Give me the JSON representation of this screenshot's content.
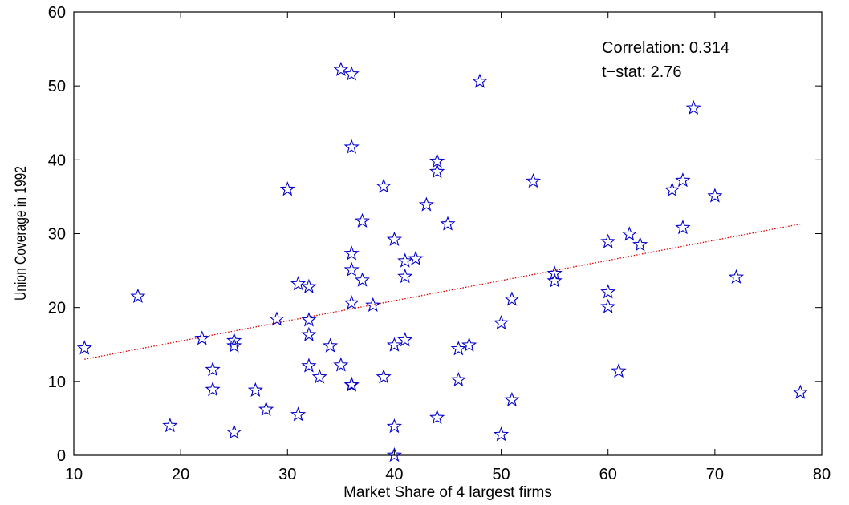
{
  "chart_data": {
    "type": "scatter",
    "title": "",
    "xlabel": "Market Share of 4 largest firms",
    "ylabel": "Union Coverage in 1992",
    "xlim": [
      10,
      80
    ],
    "ylim": [
      0,
      60
    ],
    "x_ticks": [
      10,
      20,
      30,
      40,
      50,
      60,
      70,
      80
    ],
    "y_ticks": [
      0,
      10,
      20,
      30,
      40,
      50,
      60
    ],
    "grid": false,
    "legend": "none",
    "marker": "star",
    "marker_color": "#0000cc",
    "fit_line": {
      "color": "#dd0000",
      "style": "dotted",
      "x": [
        11,
        78
      ],
      "y": [
        13.0,
        31.3
      ]
    },
    "annotations": [
      "Correlation: 0.314",
      "t−stat: 2.76"
    ],
    "points": [
      [
        11,
        14.5
      ],
      [
        16,
        21.5
      ],
      [
        19,
        4.0
      ],
      [
        22,
        15.8
      ],
      [
        23,
        11.6
      ],
      [
        23,
        8.9
      ],
      [
        25,
        15.5
      ],
      [
        25,
        14.8
      ],
      [
        25,
        3.1
      ],
      [
        27,
        8.8
      ],
      [
        28,
        6.2
      ],
      [
        29,
        18.4
      ],
      [
        30,
        36.0
      ],
      [
        31,
        23.2
      ],
      [
        31,
        5.5
      ],
      [
        32,
        22.8
      ],
      [
        32,
        18.3
      ],
      [
        32,
        16.3
      ],
      [
        32,
        12.1
      ],
      [
        33,
        10.6
      ],
      [
        34,
        14.8
      ],
      [
        35,
        52.2
      ],
      [
        35,
        12.2
      ],
      [
        36,
        51.6
      ],
      [
        36,
        41.7
      ],
      [
        36,
        27.3
      ],
      [
        36,
        25.1
      ],
      [
        36,
        20.6
      ],
      [
        36,
        9.6
      ],
      [
        36,
        9.5
      ],
      [
        37,
        31.7
      ],
      [
        37,
        23.7
      ],
      [
        38,
        20.3
      ],
      [
        39,
        36.4
      ],
      [
        39,
        10.6
      ],
      [
        40,
        29.2
      ],
      [
        40,
        14.9
      ],
      [
        40,
        3.9
      ],
      [
        40,
        0.0
      ],
      [
        41,
        26.3
      ],
      [
        41,
        24.2
      ],
      [
        41,
        15.6
      ],
      [
        42,
        26.6
      ],
      [
        43,
        33.9
      ],
      [
        44,
        39.8
      ],
      [
        44,
        38.4
      ],
      [
        44,
        5.1
      ],
      [
        45,
        31.3
      ],
      [
        46,
        14.4
      ],
      [
        46,
        10.2
      ],
      [
        47,
        14.9
      ],
      [
        48,
        50.6
      ],
      [
        50,
        17.9
      ],
      [
        50,
        2.8
      ],
      [
        51,
        21.1
      ],
      [
        51,
        7.5
      ],
      [
        53,
        37.1
      ],
      [
        55,
        24.6
      ],
      [
        55,
        23.6
      ],
      [
        60,
        28.9
      ],
      [
        60,
        22.1
      ],
      [
        60,
        20.1
      ],
      [
        61,
        11.4
      ],
      [
        62,
        29.9
      ],
      [
        63,
        28.5
      ],
      [
        66,
        35.9
      ],
      [
        67,
        37.2
      ],
      [
        67,
        30.8
      ],
      [
        68,
        47.0
      ],
      [
        70,
        35.1
      ],
      [
        72,
        24.1
      ],
      [
        78,
        8.5
      ]
    ]
  }
}
